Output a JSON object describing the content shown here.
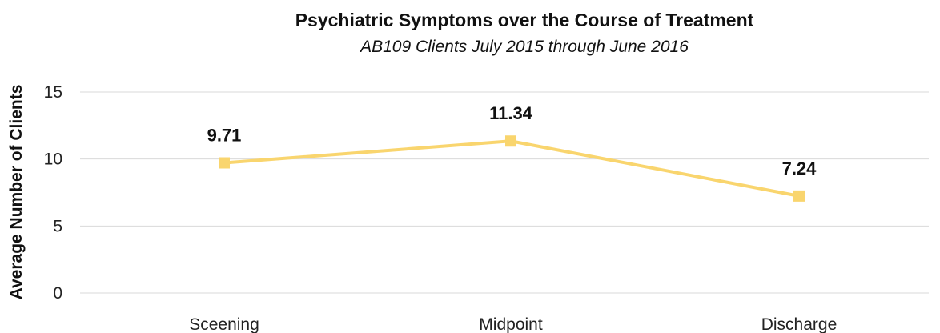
{
  "chart_data": {
    "type": "line",
    "title": "Psychiatric Symptoms over the Course of Treatment",
    "subtitle": "AB109 Clients July 2015 through June 2016",
    "xlabel": "",
    "ylabel": "Average Number of Clients",
    "categories": [
      "Sceening",
      "Midpoint",
      "Discharge"
    ],
    "series": [
      {
        "values": [
          9.71,
          11.34,
          7.24
        ],
        "labels": [
          "9.71",
          "11.34",
          "7.24"
        ],
        "color": "#F9D56E"
      }
    ],
    "ylim": [
      0,
      15
    ],
    "yticks": [
      0,
      5,
      10,
      15
    ],
    "grid": true,
    "legend": "none"
  }
}
